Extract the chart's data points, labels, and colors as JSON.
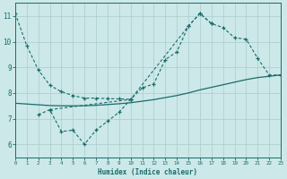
{
  "xlabel": "Humidex (Indice chaleur)",
  "bg_color": "#cce8e8",
  "grid_color": "#aacccc",
  "line_color": "#1a6b6b",
  "xlim": [
    0,
    23
  ],
  "ylim": [
    5.5,
    11.5
  ],
  "xticks": [
    0,
    1,
    2,
    3,
    4,
    5,
    6,
    7,
    8,
    9,
    10,
    11,
    12,
    13,
    14,
    15,
    16,
    17,
    18,
    19,
    20,
    21,
    22,
    23
  ],
  "yticks": [
    6,
    7,
    8,
    9,
    10,
    11
  ],
  "line_a_x": [
    0,
    1,
    2,
    3,
    4,
    5,
    6,
    7,
    8,
    9,
    10
  ],
  "line_a_y": [
    11.1,
    9.85,
    8.9,
    8.3,
    8.05,
    7.9,
    7.8,
    7.8,
    7.78,
    7.77,
    7.75
  ],
  "line_b_x": [
    2,
    3,
    4,
    5,
    6,
    7,
    8,
    9,
    10,
    11,
    12,
    13,
    14,
    15,
    16,
    17
  ],
  "line_b_y": [
    7.15,
    7.35,
    6.5,
    6.55,
    6.0,
    6.55,
    6.9,
    7.25,
    7.75,
    8.2,
    8.35,
    9.3,
    9.6,
    10.6,
    11.1,
    10.7
  ],
  "line_c_x": [
    3,
    10,
    15,
    16,
    17,
    18,
    19,
    20,
    21,
    22,
    23
  ],
  "line_c_y": [
    7.35,
    7.75,
    10.6,
    11.1,
    10.7,
    10.55,
    10.15,
    10.1,
    9.35,
    8.7,
    8.7
  ],
  "line_d_x": [
    0,
    1,
    2,
    3,
    4,
    5,
    6,
    7,
    8,
    9,
    10,
    11,
    12,
    13,
    14,
    15,
    16,
    17,
    18,
    19,
    20,
    21,
    22,
    23
  ],
  "line_d_y": [
    7.6,
    7.57,
    7.54,
    7.51,
    7.5,
    7.5,
    7.5,
    7.52,
    7.55,
    7.58,
    7.62,
    7.68,
    7.74,
    7.82,
    7.9,
    8.0,
    8.12,
    8.22,
    8.32,
    8.42,
    8.52,
    8.6,
    8.65,
    8.7
  ]
}
